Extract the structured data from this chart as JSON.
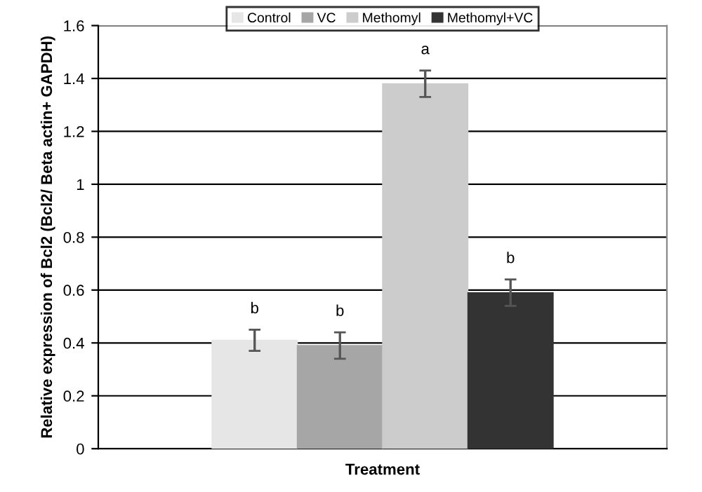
{
  "chart_data": {
    "type": "bar",
    "categories": [
      null
    ],
    "series": [
      {
        "name": "Control",
        "color": "#e6e6e6",
        "values": [
          0.41
        ],
        "errors": [
          0.04
        ]
      },
      {
        "name": "VC",
        "color": "#a6a6a6",
        "values": [
          0.39
        ],
        "errors": [
          0.05
        ]
      },
      {
        "name": "Methomyl",
        "color": "#cccccc",
        "values": [
          1.38
        ],
        "errors": [
          0.05
        ]
      },
      {
        "name": "Methomyl+VC",
        "color": "#333333",
        "values": [
          0.59
        ],
        "errors": [
          0.05
        ]
      }
    ],
    "annotations": [
      "b",
      "b",
      "a",
      "b"
    ],
    "xlabel": "Treatment",
    "ylabel": "Relative expression of Bcl2 (Bcl2/ Beta actin+ GAPDH)",
    "ylim": [
      0,
      1.6
    ],
    "yticks": [
      0,
      0.2,
      0.4,
      0.6,
      0.8,
      1,
      1.2,
      1.4,
      1.6
    ],
    "grid": "y",
    "legend": "top"
  }
}
